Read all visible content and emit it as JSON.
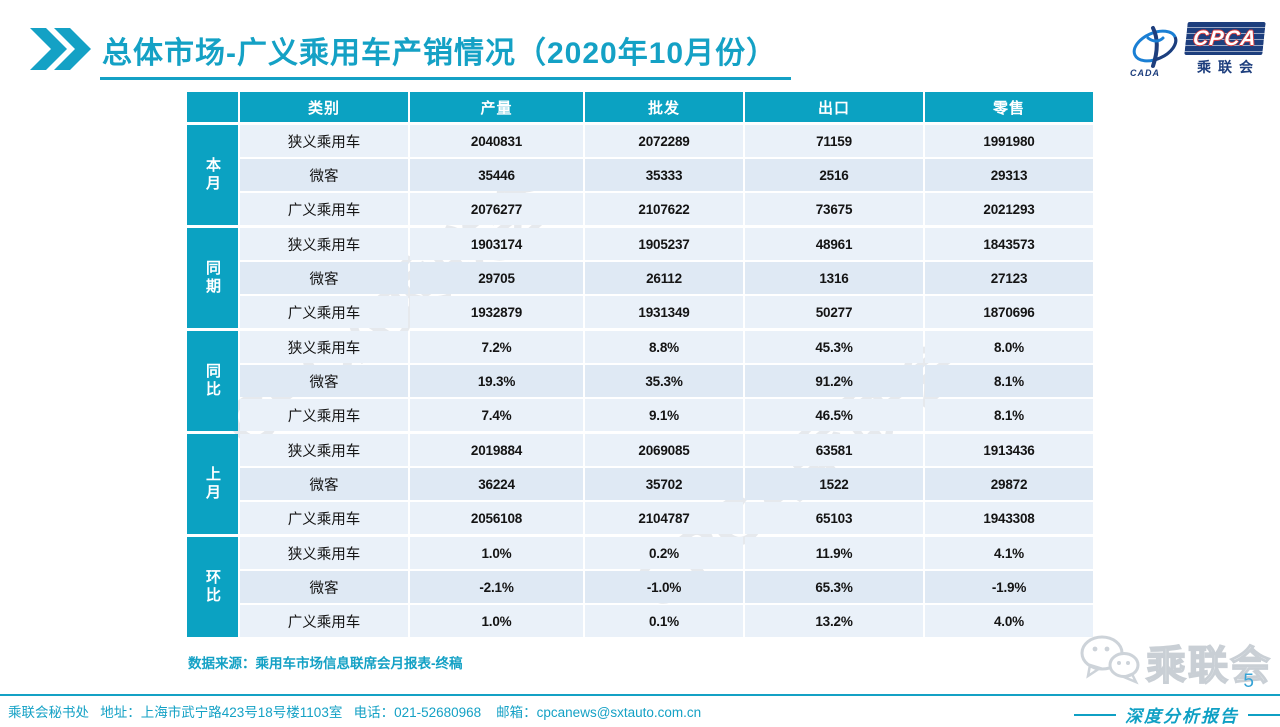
{
  "title": "总体市场-广义乘用车产销情况（2020年10月份）",
  "logo": {
    "emblem_caption": "CADA",
    "cpca": "CPCA",
    "cn_name": "乘联会"
  },
  "table": {
    "header": {
      "category": "类别",
      "columns": [
        "产量",
        "批发",
        "出口",
        "零售"
      ]
    },
    "groups": [
      {
        "label": "本月",
        "rows": [
          {
            "category": "狭义乘用车",
            "values": [
              "2040831",
              "2072289",
              "71159",
              "1991980"
            ]
          },
          {
            "category": "微客",
            "values": [
              "35446",
              "35333",
              "2516",
              "29313"
            ]
          },
          {
            "category": "广义乘用车",
            "values": [
              "2076277",
              "2107622",
              "73675",
              "2021293"
            ]
          }
        ]
      },
      {
        "label": "同期",
        "rows": [
          {
            "category": "狭义乘用车",
            "values": [
              "1903174",
              "1905237",
              "48961",
              "1843573"
            ]
          },
          {
            "category": "微客",
            "values": [
              "29705",
              "26112",
              "1316",
              "27123"
            ]
          },
          {
            "category": "广义乘用车",
            "values": [
              "1932879",
              "1931349",
              "50277",
              "1870696"
            ]
          }
        ]
      },
      {
        "label": "同比",
        "rows": [
          {
            "category": "狭义乘用车",
            "values": [
              "7.2%",
              "8.8%",
              "45.3%",
              "8.0%"
            ]
          },
          {
            "category": "微客",
            "values": [
              "19.3%",
              "35.3%",
              "91.2%",
              "8.1%"
            ]
          },
          {
            "category": "广义乘用车",
            "values": [
              "7.4%",
              "9.1%",
              "46.5%",
              "8.1%"
            ]
          }
        ]
      },
      {
        "label": "上月",
        "rows": [
          {
            "category": "狭义乘用车",
            "values": [
              "2019884",
              "2069085",
              "63581",
              "1913436"
            ]
          },
          {
            "category": "微客",
            "values": [
              "36224",
              "35702",
              "1522",
              "29872"
            ]
          },
          {
            "category": "广义乘用车",
            "values": [
              "2056108",
              "2104787",
              "65103",
              "1943308"
            ]
          }
        ]
      },
      {
        "label": "环比",
        "rows": [
          {
            "category": "狭义乘用车",
            "values": [
              "1.0%",
              "0.2%",
              "11.9%",
              "4.1%"
            ]
          },
          {
            "category": "微客",
            "values": [
              "-2.1%",
              "-1.0%",
              "65.3%",
              "-1.9%"
            ]
          },
          {
            "category": "广义乘用车",
            "values": [
              "1.0%",
              "0.1%",
              "13.2%",
              "4.0%"
            ]
          }
        ]
      }
    ]
  },
  "source_note": "数据来源：乘用车市场信息联席会月报表-终稿",
  "watermark_text": "CPCA乘联会",
  "bottom_logo_text": "乘联会",
  "page_number": "5",
  "report_tagline": "深度分析报告",
  "footer": "乘联会秘书处   地址：上海市武宁路423号18号楼1103室   电话：021-52680968    邮箱：cpcanews@sxtauto.com.cn",
  "colors": {
    "accent": "#14a1c5",
    "header_bg": "#0ba2c2",
    "navy": "#1d3e7d",
    "red_outline": "#d93a3a",
    "row_light": "#eaf1f9",
    "row_alt": "#dfe9f4"
  }
}
